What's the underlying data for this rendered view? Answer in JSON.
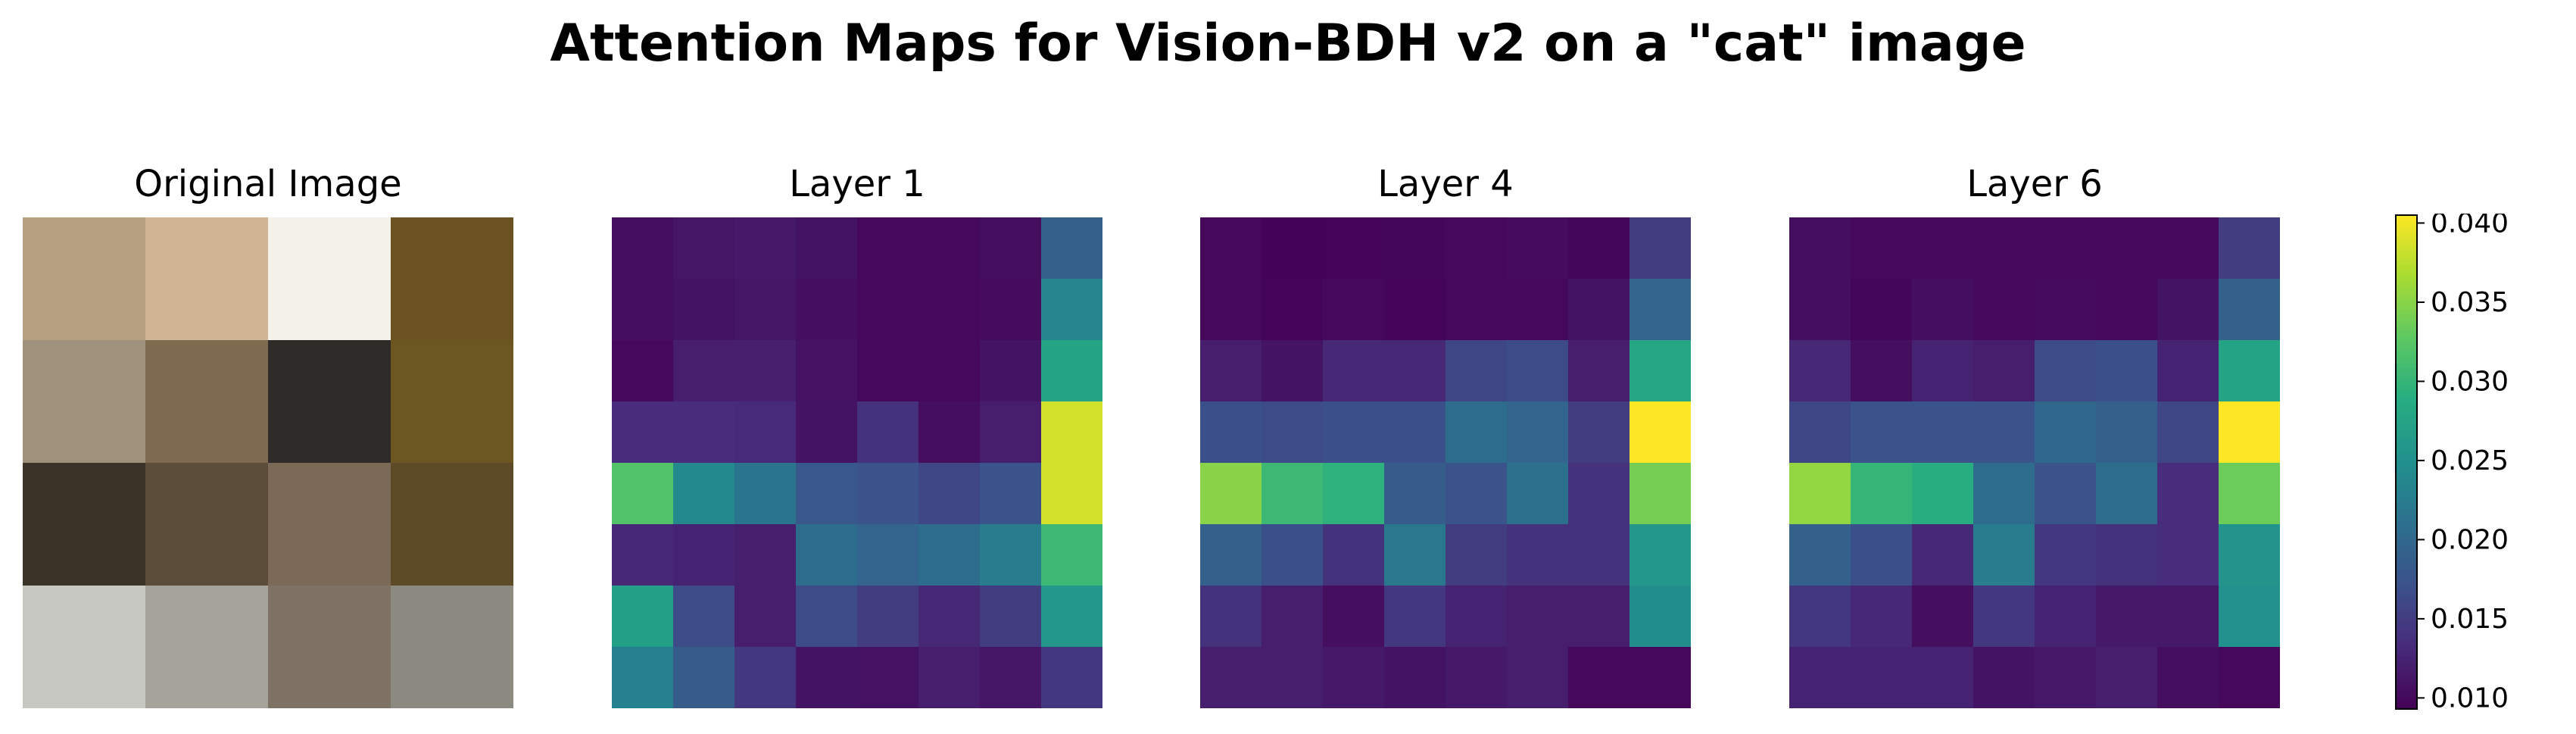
{
  "figure": {
    "title": "Attention Maps for Vision-BDH v2 on a \"cat\" image"
  },
  "panels": [
    {
      "title": "Original Image"
    },
    {
      "title": "Layer 1"
    },
    {
      "title": "Layer 4"
    },
    {
      "title": "Layer 6"
    }
  ],
  "image_pixels": {
    "rows": 4,
    "cols": 4,
    "colors": [
      [
        "#b7a07f",
        "#cfb593",
        "#f4f0ea",
        "#6a5320"
      ],
      [
        "#a0917c",
        "#7d6a4f",
        "#2f2b28",
        "#6c5622"
      ],
      [
        "#3a3328",
        "#5c4d3b",
        "#7a6a57",
        "#5d4a27"
      ],
      [
        "#c8c8c2",
        "#a6a39a",
        "#7d7263",
        "#8a8a80"
      ]
    ]
  },
  "chart_data": {
    "type": "heatmap",
    "colormap": "viridis",
    "color_range": [
      0.0093,
      0.0405
    ],
    "colorbar_ticks": [
      "0.010",
      "0.015",
      "0.020",
      "0.025",
      "0.030",
      "0.035",
      "0.040"
    ],
    "colorbar_tick_values": [
      0.01,
      0.015,
      0.02,
      0.025,
      0.03,
      0.035,
      0.04
    ],
    "maps": [
      {
        "title": "Layer 1",
        "values": [
          [
            0.0105,
            0.0112,
            0.0115,
            0.011,
            0.01,
            0.01,
            0.0105,
            0.019
          ],
          [
            0.0105,
            0.011,
            0.0112,
            0.0105,
            0.01,
            0.01,
            0.0102,
            0.0235
          ],
          [
            0.01,
            0.012,
            0.0122,
            0.0108,
            0.01,
            0.01,
            0.011,
            0.0275
          ],
          [
            0.0135,
            0.0135,
            0.0132,
            0.011,
            0.014,
            0.0105,
            0.012,
            0.0385
          ],
          [
            0.032,
            0.024,
            0.0215,
            0.018,
            0.0175,
            0.016,
            0.0175,
            0.0385
          ],
          [
            0.013,
            0.0125,
            0.0122,
            0.0205,
            0.0195,
            0.0205,
            0.0225,
            0.0305
          ],
          [
            0.027,
            0.0165,
            0.012,
            0.0165,
            0.015,
            0.013,
            0.015,
            0.026
          ],
          [
            0.023,
            0.0185,
            0.0145,
            0.011,
            0.0108,
            0.012,
            0.0112,
            0.0145
          ]
        ]
      },
      {
        "title": "Layer 4",
        "values": [
          [
            0.01,
            0.0095,
            0.0097,
            0.0098,
            0.01,
            0.0103,
            0.0098,
            0.015
          ],
          [
            0.01,
            0.0097,
            0.01,
            0.0097,
            0.01,
            0.01,
            0.011,
            0.0195
          ],
          [
            0.012,
            0.011,
            0.013,
            0.013,
            0.016,
            0.0165,
            0.012,
            0.028
          ],
          [
            0.017,
            0.0165,
            0.017,
            0.017,
            0.0205,
            0.0195,
            0.015,
            0.0405
          ],
          [
            0.035,
            0.0305,
            0.0295,
            0.0185,
            0.0175,
            0.021,
            0.014,
            0.034
          ],
          [
            0.019,
            0.017,
            0.014,
            0.022,
            0.015,
            0.014,
            0.014,
            0.026
          ],
          [
            0.014,
            0.012,
            0.0105,
            0.0145,
            0.0125,
            0.012,
            0.012,
            0.0245
          ],
          [
            0.012,
            0.012,
            0.0115,
            0.011,
            0.0115,
            0.012,
            0.01,
            0.01
          ]
        ]
      },
      {
        "title": "Layer 6",
        "values": [
          [
            0.0105,
            0.01,
            0.01,
            0.01,
            0.01,
            0.01,
            0.01,
            0.015
          ],
          [
            0.0105,
            0.0098,
            0.0105,
            0.01,
            0.0102,
            0.01,
            0.011,
            0.019
          ],
          [
            0.013,
            0.0105,
            0.0125,
            0.012,
            0.0165,
            0.017,
            0.0125,
            0.0275
          ],
          [
            0.016,
            0.0175,
            0.0175,
            0.0175,
            0.02,
            0.019,
            0.016,
            0.0405
          ],
          [
            0.0355,
            0.03,
            0.029,
            0.0205,
            0.0175,
            0.0205,
            0.0135,
            0.0335
          ],
          [
            0.019,
            0.017,
            0.013,
            0.0225,
            0.0145,
            0.014,
            0.0135,
            0.0255
          ],
          [
            0.0145,
            0.013,
            0.0105,
            0.0145,
            0.0125,
            0.0115,
            0.0115,
            0.025
          ],
          [
            0.0125,
            0.0125,
            0.0125,
            0.011,
            0.0115,
            0.012,
            0.0105,
            0.01
          ]
        ]
      }
    ]
  }
}
